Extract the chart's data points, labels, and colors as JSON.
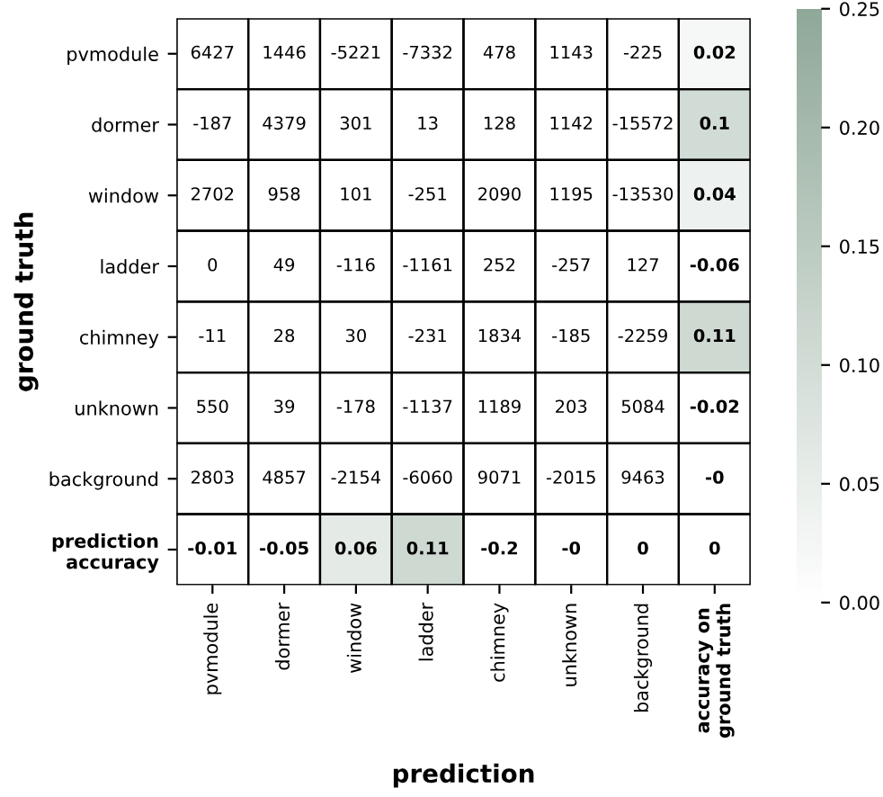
{
  "chart_data": {
    "type": "heatmap",
    "xlabel": "prediction",
    "ylabel": "ground truth",
    "categories": [
      "pvmodule",
      "dormer",
      "window",
      "ladder",
      "chimney",
      "unknown",
      "background",
      "accuracy on\nground truth"
    ],
    "y_categories": [
      "pvmodule",
      "dormer",
      "window",
      "ladder",
      "chimney",
      "unknown",
      "background",
      "prediction\naccuracy"
    ],
    "cells": [
      [
        null,
        null,
        null,
        null,
        null,
        null,
        null,
        0.02
      ],
      [
        null,
        null,
        null,
        null,
        null,
        null,
        null,
        0.1
      ],
      [
        null,
        null,
        null,
        null,
        null,
        null,
        null,
        0.04
      ],
      [
        null,
        null,
        null,
        null,
        null,
        null,
        null,
        -0.06
      ],
      [
        null,
        null,
        null,
        null,
        null,
        null,
        null,
        0.11
      ],
      [
        null,
        null,
        null,
        null,
        null,
        null,
        null,
        -0.02
      ],
      [
        null,
        null,
        null,
        null,
        null,
        null,
        null,
        0
      ],
      [
        -0.01,
        -0.05,
        0.06,
        0.11,
        -0.2,
        0,
        0,
        0
      ]
    ],
    "cell_labels": [
      [
        "6427",
        "1446",
        "-5221",
        "-7332",
        "478",
        "1143",
        "-225",
        "0.02"
      ],
      [
        "-187",
        "4379",
        "301",
        "13",
        "128",
        "1142",
        "-15572",
        "0.1"
      ],
      [
        "2702",
        "958",
        "101",
        "-251",
        "2090",
        "1195",
        "-13530",
        "0.04"
      ],
      [
        "0",
        "49",
        "-116",
        "-1161",
        "252",
        "-257",
        "127",
        "-0.06"
      ],
      [
        "-11",
        "28",
        "30",
        "-231",
        "1834",
        "-185",
        "-2259",
        "0.11"
      ],
      [
        "550",
        "39",
        "-178",
        "-1137",
        "1189",
        "203",
        "5084",
        "-0.02"
      ],
      [
        "2803",
        "4857",
        "-2154",
        "-6060",
        "9071",
        "-2015",
        "9463",
        "-0"
      ],
      [
        "-0.01",
        "-0.05",
        "0.06",
        "0.11",
        "-0.2",
        "-0",
        "0",
        "0"
      ]
    ],
    "clim": [
      0,
      0.25
    ],
    "cticks": [
      {
        "value": 0,
        "label": "0.00"
      },
      {
        "value": 0.05,
        "label": "0.05"
      },
      {
        "value": 0.1,
        "label": "0.10"
      },
      {
        "value": 0.15,
        "label": "0.15"
      },
      {
        "value": 0.2,
        "label": "0.20"
      },
      {
        "value": 0.25,
        "label": "0.25"
      }
    ],
    "color": "#8fa898"
  }
}
